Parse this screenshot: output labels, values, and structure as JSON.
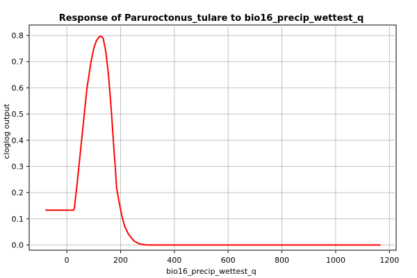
{
  "chart_data": {
    "type": "line",
    "title": "Response of Paruroctonus_tulare to bio16_precip_wettest_q",
    "xlabel": "bio16_precip_wettest_q",
    "ylabel": "cloglog output",
    "xlim": [
      -140,
      1225
    ],
    "ylim": [
      -0.02,
      0.84
    ],
    "xticks": [
      0,
      200,
      400,
      600,
      800,
      1000,
      1200
    ],
    "yticks": [
      0.0,
      0.1,
      0.2,
      0.3,
      0.4,
      0.5,
      0.6,
      0.7,
      0.8
    ],
    "ytick_labels": [
      "0.0",
      "0.1",
      "0.2",
      "0.3",
      "0.4",
      "0.5",
      "0.6",
      "0.7",
      "0.8"
    ],
    "grid": true,
    "line_color": "#ff0000",
    "series": [
      {
        "x": [
          -78,
          0,
          25,
          28,
          40,
          55,
          65,
          75,
          90,
          100,
          110,
          120,
          128,
          135,
          145,
          155,
          165,
          175,
          180,
          185,
          195,
          205,
          215,
          230,
          250,
          270,
          290,
          300,
          350,
          400,
          600,
          800,
          1000,
          1165
        ],
        "y": [
          0.133,
          0.133,
          0.133,
          0.14,
          0.25,
          0.4,
          0.5,
          0.6,
          0.7,
          0.75,
          0.78,
          0.795,
          0.797,
          0.79,
          0.74,
          0.65,
          0.52,
          0.37,
          0.3,
          0.22,
          0.16,
          0.11,
          0.072,
          0.04,
          0.015,
          0.004,
          0.001,
          0.0,
          0.0,
          0.0,
          0.0,
          0.0,
          0.0,
          0.0
        ]
      }
    ]
  }
}
